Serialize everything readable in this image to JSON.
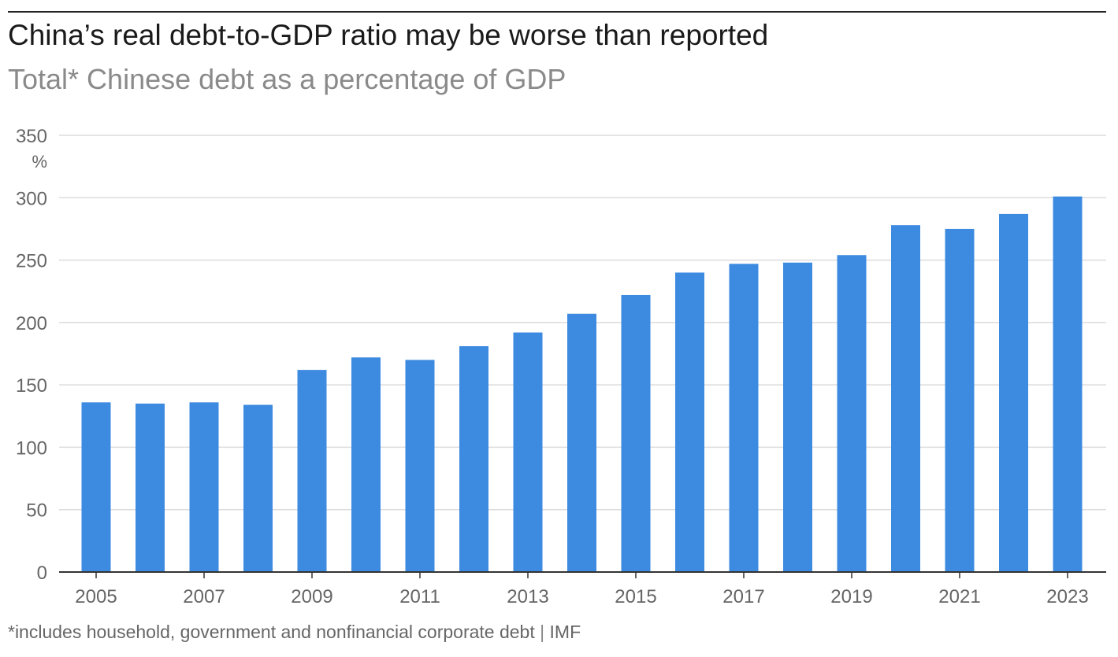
{
  "header": {
    "title": "China’s real debt-to-GDP ratio may be worse than reported",
    "subtitle": "Total* Chinese debt as a percentage of GDP"
  },
  "footer": {
    "note": "*includes household, government and nonfinancial corporate debt",
    "separator": "|",
    "source": "IMF"
  },
  "colors": {
    "bar": "#3d8be0",
    "grid": "#dcdcdc",
    "axis": "#333333",
    "tick_text": "#666666"
  },
  "chart_data": {
    "type": "bar",
    "title": "China’s real debt-to-GDP ratio may be worse than reported",
    "subtitle": "Total* Chinese debt as a percentage of GDP",
    "xlabel": "",
    "ylabel": "",
    "y_unit_label": "%",
    "ylim": [
      0,
      350
    ],
    "yticks": [
      0,
      50,
      100,
      150,
      200,
      250,
      300,
      350
    ],
    "grid": true,
    "categories": [
      "2005",
      "2006",
      "2007",
      "2008",
      "2009",
      "2010",
      "2011",
      "2012",
      "2013",
      "2014",
      "2015",
      "2016",
      "2017",
      "2018",
      "2019",
      "2020",
      "2021",
      "2022",
      "2023"
    ],
    "x_tick_labels": [
      "2005",
      "2007",
      "2009",
      "2011",
      "2013",
      "2015",
      "2017",
      "2019",
      "2021",
      "2023"
    ],
    "series": [
      {
        "values": [
          136,
          135,
          136,
          134,
          162,
          172,
          170,
          181,
          192,
          207,
          222,
          240,
          247,
          248,
          254,
          278,
          275,
          287,
          301
        ]
      }
    ]
  }
}
